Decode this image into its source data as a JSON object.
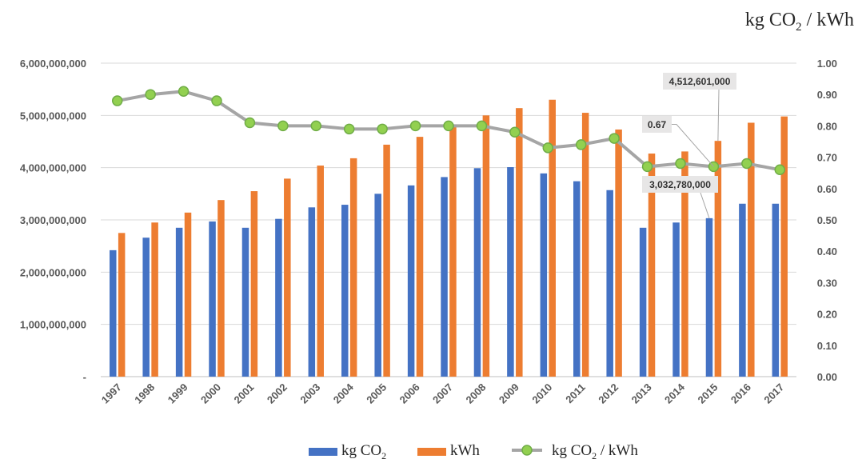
{
  "chart_data": {
    "type": "bar",
    "title": "",
    "right_axis_title": {
      "main": "kg CO",
      "sub": "2",
      "tail": " / kWh"
    },
    "categories": [
      "1997",
      "1998",
      "1999",
      "2000",
      "2001",
      "2002",
      "2003",
      "2004",
      "2005",
      "2006",
      "2007",
      "2008",
      "2009",
      "2010",
      "2011",
      "2012",
      "2013",
      "2014",
      "2015",
      "2016",
      "2017"
    ],
    "series": [
      {
        "name": "kg CO2",
        "label_main": "kg CO",
        "label_sub": "2",
        "label_tail": "",
        "type": "bar",
        "axis": "left",
        "color": "#4472C4",
        "values": [
          2420000000,
          2660000000,
          2850000000,
          2970000000,
          2850000000,
          3020000000,
          3240000000,
          3290000000,
          3500000000,
          3660000000,
          3820000000,
          3990000000,
          4010000000,
          3890000000,
          3740000000,
          3570000000,
          2850000000,
          2950000000,
          3032780000,
          3310000000,
          3310000000
        ]
      },
      {
        "name": "kWh",
        "label_main": "kWh",
        "label_sub": "",
        "label_tail": "",
        "type": "bar",
        "axis": "left",
        "color": "#ED7D31",
        "values": [
          2750000000,
          2950000000,
          3140000000,
          3380000000,
          3550000000,
          3790000000,
          4040000000,
          4180000000,
          4440000000,
          4590000000,
          4810000000,
          5000000000,
          5140000000,
          5300000000,
          5050000000,
          4730000000,
          4270000000,
          4310000000,
          4512601000,
          4860000000,
          4980000000
        ]
      },
      {
        "name": "kg CO2 / kWh",
        "label_main": "kg CO",
        "label_sub": "2",
        "label_tail": " / kWh",
        "type": "line",
        "axis": "right",
        "color": "#A5A5A5",
        "marker_color": "#92D050",
        "marker_edge": "#70AD47",
        "values": [
          0.88,
          0.9,
          0.91,
          0.88,
          0.81,
          0.8,
          0.8,
          0.79,
          0.79,
          0.8,
          0.8,
          0.8,
          0.78,
          0.73,
          0.74,
          0.76,
          0.67,
          0.68,
          0.67,
          0.68,
          0.66
        ]
      }
    ],
    "y_left": {
      "min": 0,
      "max": 6000000000,
      "ticks": [
        "-",
        "1,000,000,000",
        "2,000,000,000",
        "3,000,000,000",
        "4,000,000,000",
        "5,000,000,000",
        "6,000,000,000"
      ]
    },
    "y_right": {
      "min": 0,
      "max": 1,
      "ticks": [
        "0.00",
        "0.10",
        "0.20",
        "0.30",
        "0.40",
        "0.50",
        "0.60",
        "0.70",
        "0.80",
        "0.90",
        "1.00"
      ]
    },
    "grid": true,
    "legend_position": "bottom",
    "annotations": [
      {
        "text": "4,512,601,000",
        "series": 1,
        "index": 18
      },
      {
        "text": "0.67",
        "series": 2,
        "index": 18
      },
      {
        "text": "3,032,780,000",
        "series": 0,
        "index": 18
      }
    ]
  }
}
